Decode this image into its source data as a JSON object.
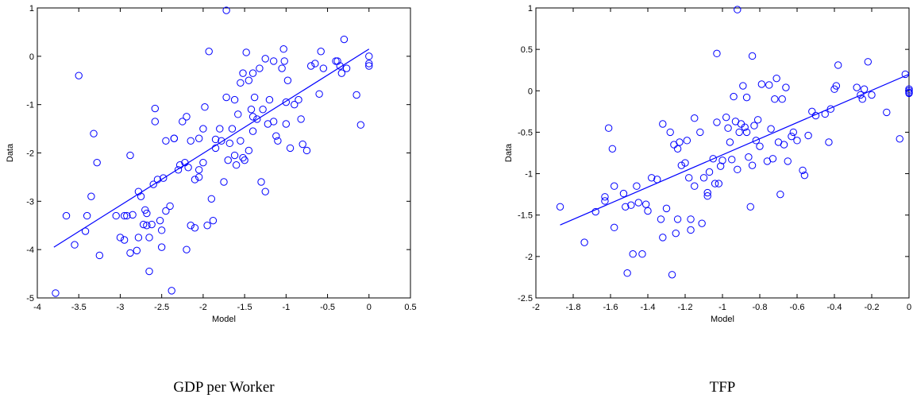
{
  "chart_data": [
    {
      "type": "scatter",
      "title": "GDP per Worker",
      "xlabel": "Model",
      "ylabel": "Data",
      "color": "#0000ff",
      "xlim": [
        -4,
        0.5
      ],
      "xticks": [
        -4,
        -3.5,
        -3,
        -2.5,
        -2,
        -1.5,
        -1,
        -0.5,
        0,
        0.5
      ],
      "ylim": [
        -5,
        1
      ],
      "yticks": [
        -5,
        -4,
        -3,
        -2,
        -1,
        0,
        1
      ],
      "points": {
        "x": [
          -3.78,
          -3.5,
          -3.65,
          -3.55,
          -3.4,
          -3.42,
          -3.35,
          -3.32,
          -3.28,
          -3.25,
          -3.05,
          -3.0,
          -2.95,
          -2.95,
          -2.88,
          -2.88,
          -2.85,
          -2.8,
          -2.78,
          -2.75,
          -2.72,
          -2.7,
          -2.68,
          -2.65,
          -2.65,
          -2.62,
          -2.6,
          -2.58,
          -2.58,
          -2.55,
          -2.52,
          -2.5,
          -2.5,
          -2.45,
          -2.45,
          -2.4,
          -2.38,
          -2.35,
          -2.3,
          -2.25,
          -2.22,
          -2.2,
          -2.2,
          -2.18,
          -2.15,
          -2.15,
          -2.1,
          -2.1,
          -2.05,
          -2.05,
          -2.0,
          -2.0,
          -1.98,
          -1.95,
          -1.93,
          -1.9,
          -1.88,
          -1.85,
          -1.8,
          -1.78,
          -1.75,
          -1.72,
          -1.72,
          -1.7,
          -1.68,
          -1.65,
          -1.62,
          -1.6,
          -1.58,
          -1.55,
          -1.55,
          -1.52,
          -1.5,
          -1.48,
          -1.45,
          -1.45,
          -1.42,
          -1.4,
          -1.38,
          -1.35,
          -1.32,
          -1.3,
          -1.28,
          -1.25,
          -1.22,
          -1.2,
          -1.15,
          -1.12,
          -1.1,
          -1.05,
          -1.03,
          -1.02,
          -1.0,
          -1.0,
          -0.98,
          -0.95,
          -0.9,
          -0.85,
          -0.82,
          -0.8,
          -0.75,
          -0.7,
          -0.65,
          -0.6,
          -0.58,
          -0.55,
          -0.4,
          -0.38,
          -0.35,
          -0.33,
          -0.3,
          -0.27,
          -0.15,
          -0.1,
          0.0,
          0.0,
          0.0,
          -1.25,
          -1.4,
          -1.52,
          -1.62,
          -1.85,
          -2.35,
          -2.48,
          -2.68,
          -2.78,
          -2.92,
          -2.05,
          -2.28,
          -1.4,
          -1.15
        ],
        "y": [
          -4.9,
          -0.4,
          -3.3,
          -3.9,
          -3.3,
          -3.62,
          -2.9,
          -1.6,
          -2.2,
          -4.12,
          -3.3,
          -3.75,
          -3.8,
          -3.3,
          -2.05,
          -4.07,
          -3.28,
          -4.02,
          -3.75,
          -2.9,
          -3.48,
          -3.18,
          -3.25,
          -4.45,
          -3.75,
          -3.48,
          -2.65,
          -1.08,
          -1.35,
          -2.55,
          -3.4,
          -3.6,
          -3.95,
          -3.2,
          -1.75,
          -3.1,
          -4.85,
          -1.7,
          -2.35,
          -1.35,
          -2.2,
          -1.25,
          -4.0,
          -2.3,
          -3.5,
          -1.75,
          -3.55,
          -2.55,
          -1.7,
          -2.35,
          -2.2,
          -1.5,
          -1.05,
          -3.5,
          0.1,
          -2.95,
          -3.4,
          -1.9,
          -1.5,
          -1.75,
          -2.6,
          -0.85,
          0.95,
          -2.15,
          -1.8,
          -1.5,
          -2.05,
          -2.25,
          -1.2,
          -0.55,
          -1.75,
          -2.1,
          -2.15,
          0.08,
          -0.5,
          -1.95,
          -1.1,
          -1.55,
          -0.85,
          -1.3,
          -0.25,
          -2.6,
          -1.1,
          -2.8,
          -1.4,
          -0.9,
          -0.1,
          -1.65,
          -1.75,
          -0.25,
          0.15,
          -0.1,
          -0.95,
          -1.4,
          -0.5,
          -1.9,
          -1.0,
          -0.9,
          -1.3,
          -1.82,
          -1.95,
          -0.2,
          -0.15,
          -0.78,
          0.1,
          -0.25,
          -0.1,
          -0.1,
          -0.2,
          -0.35,
          0.35,
          -0.25,
          -0.8,
          -1.42,
          0.0,
          -0.2,
          -0.15,
          -0.05,
          -0.35,
          -0.35,
          -0.9,
          -1.72,
          -1.7,
          -2.52,
          -3.5,
          -2.8,
          -3.3,
          -2.5,
          -2.25,
          -1.25,
          -1.35
        ]
      },
      "fit_line": {
        "x": [
          -3.8,
          0.0
        ],
        "y": [
          -3.95,
          0.15
        ]
      }
    },
    {
      "type": "scatter",
      "title": "TFP",
      "xlabel": "Model",
      "ylabel": "Data",
      "color": "#0000ff",
      "xlim": [
        -2,
        0
      ],
      "xticks": [
        -2,
        -1.8,
        -1.6,
        -1.4,
        -1.2,
        -1,
        -0.8,
        -0.6,
        -0.4,
        -0.2,
        0
      ],
      "ylim": [
        -2.5,
        1
      ],
      "yticks": [
        -2.5,
        -2,
        -1.5,
        -1,
        -0.5,
        0,
        0.5,
        1
      ],
      "points": {
        "x": [
          -1.87,
          -1.74,
          -1.68,
          -1.63,
          -1.63,
          -1.61,
          -1.59,
          -1.58,
          -1.58,
          -1.53,
          -1.52,
          -1.51,
          -1.49,
          -1.48,
          -1.46,
          -1.45,
          -1.43,
          -1.41,
          -1.4,
          -1.38,
          -1.35,
          -1.33,
          -1.32,
          -1.32,
          -1.3,
          -1.28,
          -1.27,
          -1.26,
          -1.25,
          -1.24,
          -1.24,
          -1.23,
          -1.22,
          -1.2,
          -1.19,
          -1.18,
          -1.17,
          -1.17,
          -1.15,
          -1.15,
          -1.12,
          -1.11,
          -1.1,
          -1.08,
          -1.08,
          -1.07,
          -1.05,
          -1.04,
          -1.03,
          -1.03,
          -1.02,
          -1.01,
          -1.0,
          -0.98,
          -0.97,
          -0.96,
          -0.95,
          -0.94,
          -0.93,
          -0.92,
          -0.92,
          -0.91,
          -0.9,
          -0.89,
          -0.88,
          -0.87,
          -0.87,
          -0.86,
          -0.85,
          -0.84,
          -0.84,
          -0.83,
          -0.82,
          -0.81,
          -0.8,
          -0.79,
          -0.76,
          -0.75,
          -0.74,
          -0.73,
          -0.72,
          -0.71,
          -0.7,
          -0.69,
          -0.68,
          -0.67,
          -0.66,
          -0.65,
          -0.63,
          -0.62,
          -0.6,
          -0.57,
          -0.56,
          -0.54,
          -0.52,
          -0.5,
          -0.45,
          -0.43,
          -0.42,
          -0.4,
          -0.39,
          -0.38,
          -0.28,
          -0.26,
          -0.25,
          -0.24,
          -0.22,
          -0.2,
          -0.12,
          -0.05,
          -0.02,
          0,
          0,
          0,
          0
        ],
        "y": [
          -1.4,
          -1.83,
          -1.46,
          -1.33,
          -1.28,
          -0.45,
          -0.7,
          -1.15,
          -1.65,
          -1.24,
          -1.4,
          -2.2,
          -1.38,
          -1.97,
          -1.15,
          -1.35,
          -1.97,
          -1.37,
          -1.45,
          -1.05,
          -1.07,
          -1.55,
          -1.77,
          -0.4,
          -1.42,
          -0.5,
          -2.22,
          -0.65,
          -1.72,
          -0.7,
          -1.55,
          -0.62,
          -0.9,
          -0.87,
          -0.6,
          -1.05,
          -1.68,
          -1.55,
          -1.15,
          -0.33,
          -0.5,
          -1.6,
          -1.05,
          -1.27,
          -1.23,
          -0.98,
          -0.82,
          -1.12,
          -0.38,
          0.45,
          -1.12,
          -0.91,
          -0.84,
          -0.32,
          -0.45,
          -0.62,
          -0.83,
          -0.07,
          -0.37,
          0.98,
          -0.95,
          -0.5,
          -0.4,
          0.06,
          -0.44,
          -0.5,
          -0.08,
          -0.8,
          -1.4,
          0.42,
          -0.9,
          -0.42,
          -0.6,
          -0.35,
          -0.67,
          0.08,
          -0.85,
          0.07,
          -0.46,
          -0.82,
          -0.1,
          0.15,
          -0.62,
          -1.25,
          -0.1,
          -0.65,
          0.04,
          -0.85,
          -0.55,
          -0.5,
          -0.6,
          -0.96,
          -1.02,
          -0.54,
          -0.25,
          -0.3,
          -0.28,
          -0.62,
          -0.22,
          0.02,
          0.06,
          0.31,
          0.04,
          -0.05,
          -0.1,
          0.02,
          0.35,
          -0.05,
          -0.26,
          -0.58,
          0.2,
          0.0,
          -0.02,
          0.02,
          -0.03
        ]
      },
      "fit_line": {
        "x": [
          -1.87,
          0.0
        ],
        "y": [
          -1.62,
          0.2
        ]
      }
    }
  ]
}
